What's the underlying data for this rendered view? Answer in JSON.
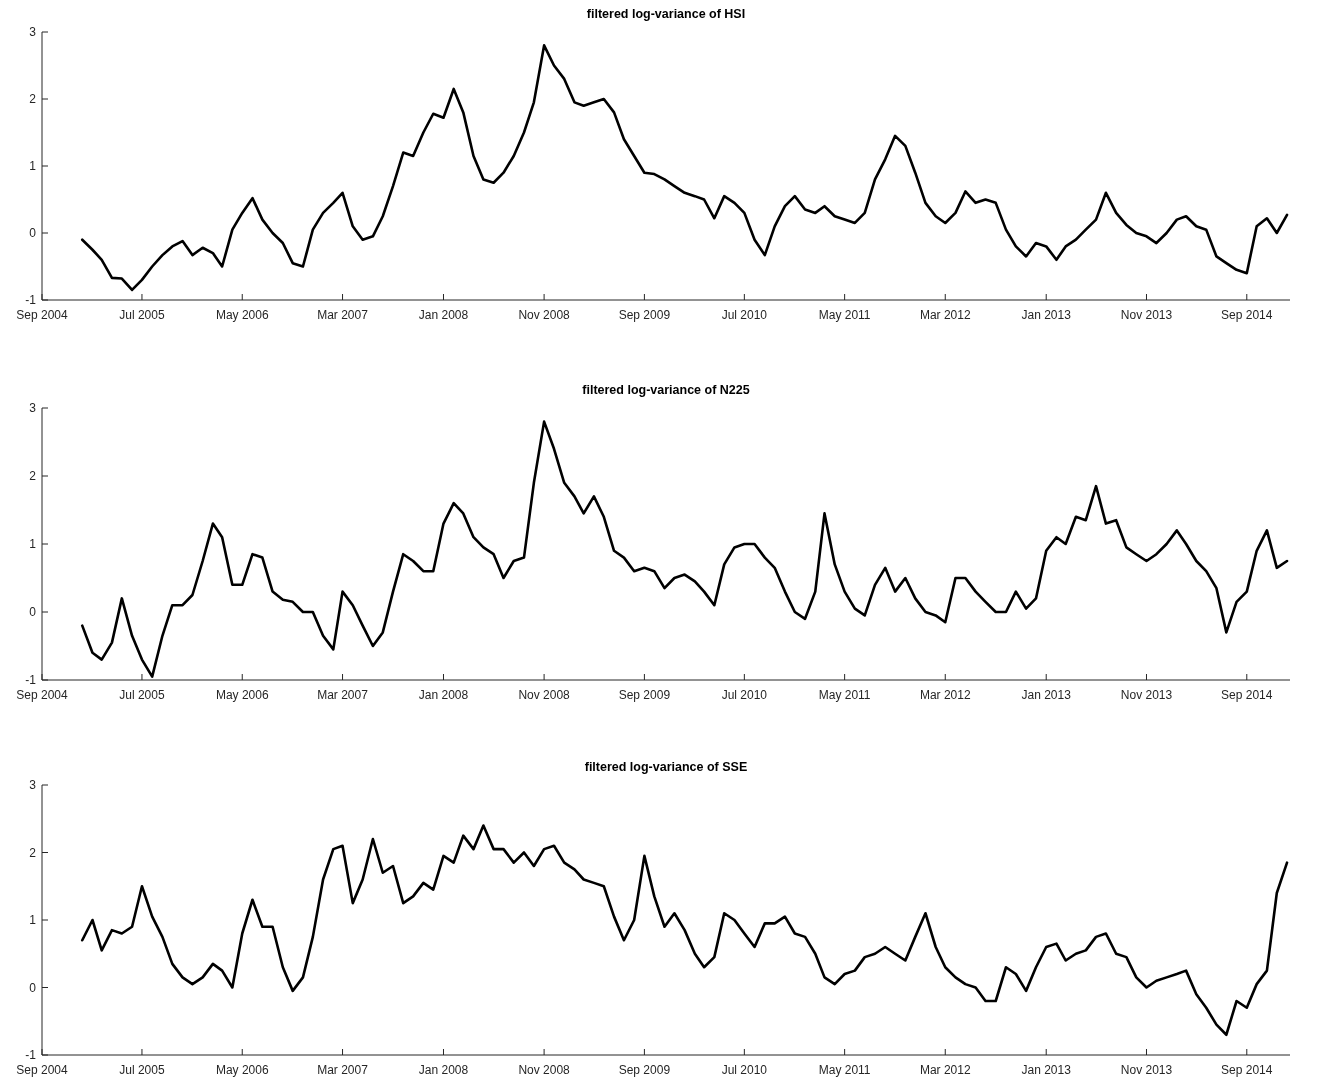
{
  "chart_data": [
    {
      "type": "line",
      "title": "filtered log-variance of HSI",
      "x": [
        "2005-01",
        "2005-02",
        "2005-03",
        "2005-04",
        "2005-05",
        "2005-06",
        "2005-07",
        "2005-08",
        "2005-09",
        "2005-10",
        "2005-11",
        "2005-12",
        "2006-01",
        "2006-02",
        "2006-03",
        "2006-04",
        "2006-05",
        "2006-06",
        "2006-07",
        "2006-08",
        "2006-09",
        "2006-10",
        "2006-11",
        "2006-12",
        "2007-01",
        "2007-02",
        "2007-03",
        "2007-04",
        "2007-05",
        "2007-06",
        "2007-07",
        "2007-08",
        "2007-09",
        "2007-10",
        "2007-11",
        "2007-12",
        "2008-01",
        "2008-02",
        "2008-03",
        "2008-04",
        "2008-05",
        "2008-06",
        "2008-07",
        "2008-08",
        "2008-09",
        "2008-10",
        "2008-11",
        "2008-12",
        "2009-01",
        "2009-02",
        "2009-03",
        "2009-04",
        "2009-05",
        "2009-06",
        "2009-07",
        "2009-08",
        "2009-09",
        "2009-10",
        "2009-11",
        "2009-12",
        "2010-01",
        "2010-02",
        "2010-03",
        "2010-04",
        "2010-05",
        "2010-06",
        "2010-07",
        "2010-08",
        "2010-09",
        "2010-10",
        "2010-11",
        "2010-12",
        "2011-01",
        "2011-02",
        "2011-03",
        "2011-04",
        "2011-05",
        "2011-06",
        "2011-07",
        "2011-08",
        "2011-09",
        "2011-10",
        "2011-11",
        "2011-12",
        "2012-01",
        "2012-02",
        "2012-03",
        "2012-04",
        "2012-05",
        "2012-06",
        "2012-07",
        "2012-08",
        "2012-09",
        "2012-10",
        "2012-11",
        "2012-12",
        "2013-01",
        "2013-02",
        "2013-03",
        "2013-04",
        "2013-05",
        "2013-06",
        "2013-07",
        "2013-08",
        "2013-09",
        "2013-10",
        "2013-11",
        "2013-12",
        "2014-01",
        "2014-02",
        "2014-03",
        "2014-04",
        "2014-05",
        "2014-06",
        "2014-07",
        "2014-08",
        "2014-09",
        "2014-10",
        "2014-11",
        "2014-12",
        "2015-01"
      ],
      "series": [
        {
          "color": "#000000",
          "values": [
            -0.1,
            -0.25,
            -0.4,
            -0.67,
            -0.68,
            -0.85,
            -0.7,
            -0.5,
            -0.33,
            -0.2,
            -0.12,
            -0.33,
            -0.22,
            -0.3,
            -0.5,
            0.05,
            0.3,
            0.52,
            0.2,
            0.0,
            -0.15,
            -0.45,
            -0.5,
            0.05,
            0.3,
            0.45,
            0.6,
            0.1,
            -0.1,
            -0.05,
            0.25,
            0.7,
            1.2,
            1.15,
            1.5,
            1.78,
            1.72,
            2.15,
            1.8,
            1.15,
            0.8,
            0.75,
            0.9,
            1.15,
            1.5,
            1.95,
            2.8,
            2.5,
            2.3,
            1.95,
            1.9,
            1.95,
            2.0,
            1.8,
            1.4,
            1.15,
            0.9,
            0.88,
            0.8,
            0.7,
            0.6,
            0.55,
            0.5,
            0.22,
            0.55,
            0.45,
            0.3,
            -0.1,
            -0.33,
            0.1,
            0.4,
            0.55,
            0.35,
            0.3,
            0.4,
            0.25,
            0.2,
            0.15,
            0.3,
            0.8,
            1.1,
            1.45,
            1.3,
            0.9,
            0.45,
            0.25,
            0.15,
            0.3,
            0.62,
            0.45,
            0.5,
            0.45,
            0.05,
            -0.2,
            -0.35,
            -0.15,
            -0.2,
            -0.4,
            -0.2,
            -0.1,
            0.05,
            0.2,
            0.6,
            0.3,
            0.12,
            0.0,
            -0.05,
            -0.15,
            0.0,
            0.2,
            0.25,
            0.1,
            0.05,
            -0.35,
            -0.45,
            -0.55,
            -0.6,
            0.1,
            0.22,
            0.0,
            0.27
          ]
        }
      ],
      "xlim": [
        "2004-09-01",
        "2015-01-10"
      ],
      "ylim": [
        -1,
        3
      ],
      "yticks": [
        -1,
        0,
        1,
        2,
        3
      ],
      "xticks": [
        {
          "value": "2004-09",
          "label": "Sep 2004"
        },
        {
          "value": "2005-07",
          "label": "Jul 2005"
        },
        {
          "value": "2006-05",
          "label": "May 2006"
        },
        {
          "value": "2007-03",
          "label": "Mar 2007"
        },
        {
          "value": "2008-01",
          "label": "Jan 2008"
        },
        {
          "value": "2008-11",
          "label": "Nov 2008"
        },
        {
          "value": "2009-09",
          "label": "Sep 2009"
        },
        {
          "value": "2010-07",
          "label": "Jul 2010"
        },
        {
          "value": "2011-05",
          "label": "May 2011"
        },
        {
          "value": "2012-03",
          "label": "Mar 2012"
        },
        {
          "value": "2013-01",
          "label": "Jan 2013"
        },
        {
          "value": "2013-11",
          "label": "Nov 2013"
        },
        {
          "value": "2014-09",
          "label": "Sep 2014"
        }
      ],
      "grid": false,
      "line_style": "solid"
    },
    {
      "type": "line",
      "title": "filtered log-variance of N225",
      "x": [
        "2005-01",
        "2005-02",
        "2005-03",
        "2005-04",
        "2005-05",
        "2005-06",
        "2005-07",
        "2005-08",
        "2005-09",
        "2005-10",
        "2005-11",
        "2005-12",
        "2006-01",
        "2006-02",
        "2006-03",
        "2006-04",
        "2006-05",
        "2006-06",
        "2006-07",
        "2006-08",
        "2006-09",
        "2006-10",
        "2006-11",
        "2006-12",
        "2007-01",
        "2007-02",
        "2007-03",
        "2007-04",
        "2007-05",
        "2007-06",
        "2007-07",
        "2007-08",
        "2007-09",
        "2007-10",
        "2007-11",
        "2007-12",
        "2008-01",
        "2008-02",
        "2008-03",
        "2008-04",
        "2008-05",
        "2008-06",
        "2008-07",
        "2008-08",
        "2008-09",
        "2008-10",
        "2008-11",
        "2008-12",
        "2009-01",
        "2009-02",
        "2009-03",
        "2009-04",
        "2009-05",
        "2009-06",
        "2009-07",
        "2009-08",
        "2009-09",
        "2009-10",
        "2009-11",
        "2009-12",
        "2010-01",
        "2010-02",
        "2010-03",
        "2010-04",
        "2010-05",
        "2010-06",
        "2010-07",
        "2010-08",
        "2010-09",
        "2010-10",
        "2010-11",
        "2010-12",
        "2011-01",
        "2011-02",
        "2011-03",
        "2011-04",
        "2011-05",
        "2011-06",
        "2011-07",
        "2011-08",
        "2011-09",
        "2011-10",
        "2011-11",
        "2011-12",
        "2012-01",
        "2012-02",
        "2012-03",
        "2012-04",
        "2012-05",
        "2012-06",
        "2012-07",
        "2012-08",
        "2012-09",
        "2012-10",
        "2012-11",
        "2012-12",
        "2013-01",
        "2013-02",
        "2013-03",
        "2013-04",
        "2013-05",
        "2013-06",
        "2013-07",
        "2013-08",
        "2013-09",
        "2013-10",
        "2013-11",
        "2013-12",
        "2014-01",
        "2014-02",
        "2014-03",
        "2014-04",
        "2014-05",
        "2014-06",
        "2014-07",
        "2014-08",
        "2014-09",
        "2014-10",
        "2014-11",
        "2014-12",
        "2015-01"
      ],
      "series": [
        {
          "color": "#000000",
          "values": [
            -0.2,
            -0.6,
            -0.7,
            -0.45,
            0.2,
            -0.35,
            -0.7,
            -0.95,
            -0.35,
            0.1,
            0.1,
            0.25,
            0.75,
            1.3,
            1.1,
            0.4,
            0.4,
            0.85,
            0.8,
            0.3,
            0.18,
            0.15,
            0.0,
            0.0,
            -0.35,
            -0.55,
            0.3,
            0.1,
            -0.2,
            -0.5,
            -0.3,
            0.3,
            0.85,
            0.75,
            0.6,
            0.6,
            1.3,
            1.6,
            1.45,
            1.1,
            0.95,
            0.85,
            0.5,
            0.75,
            0.8,
            1.9,
            2.8,
            2.4,
            1.9,
            1.7,
            1.45,
            1.7,
            1.4,
            0.9,
            0.8,
            0.6,
            0.65,
            0.6,
            0.35,
            0.5,
            0.55,
            0.45,
            0.3,
            0.1,
            0.7,
            0.95,
            1.0,
            1.0,
            0.8,
            0.65,
            0.3,
            0.0,
            -0.1,
            0.3,
            1.45,
            0.7,
            0.3,
            0.05,
            -0.05,
            0.4,
            0.65,
            0.3,
            0.5,
            0.2,
            0.0,
            -0.05,
            -0.15,
            0.5,
            0.5,
            0.3,
            0.15,
            0.0,
            0.0,
            0.3,
            0.05,
            0.2,
            0.9,
            1.1,
            1.0,
            1.4,
            1.35,
            1.85,
            1.3,
            1.35,
            0.95,
            0.85,
            0.75,
            0.85,
            1.0,
            1.2,
            1.0,
            0.75,
            0.6,
            0.35,
            -0.3,
            0.15,
            0.3,
            0.9,
            1.2,
            0.65,
            0.75
          ]
        }
      ],
      "xlim": [
        "2004-09-01",
        "2015-01-10"
      ],
      "ylim": [
        -1,
        3
      ],
      "yticks": [
        -1,
        0,
        1,
        2,
        3
      ],
      "xticks": [
        {
          "value": "2004-09",
          "label": "Sep 2004"
        },
        {
          "value": "2005-07",
          "label": "Jul 2005"
        },
        {
          "value": "2006-05",
          "label": "May 2006"
        },
        {
          "value": "2007-03",
          "label": "Mar 2007"
        },
        {
          "value": "2008-01",
          "label": "Jan 2008"
        },
        {
          "value": "2008-11",
          "label": "Nov 2008"
        },
        {
          "value": "2009-09",
          "label": "Sep 2009"
        },
        {
          "value": "2010-07",
          "label": "Jul 2010"
        },
        {
          "value": "2011-05",
          "label": "May 2011"
        },
        {
          "value": "2012-03",
          "label": "Mar 2012"
        },
        {
          "value": "2013-01",
          "label": "Jan 2013"
        },
        {
          "value": "2013-11",
          "label": "Nov 2013"
        },
        {
          "value": "2014-09",
          "label": "Sep 2014"
        }
      ],
      "grid": false,
      "line_style": "solid"
    },
    {
      "type": "line",
      "title": "filtered log-variance of SSE",
      "x": [
        "2005-01",
        "2005-02",
        "2005-03",
        "2005-04",
        "2005-05",
        "2005-06",
        "2005-07",
        "2005-08",
        "2005-09",
        "2005-10",
        "2005-11",
        "2005-12",
        "2006-01",
        "2006-02",
        "2006-03",
        "2006-04",
        "2006-05",
        "2006-06",
        "2006-07",
        "2006-08",
        "2006-09",
        "2006-10",
        "2006-11",
        "2006-12",
        "2007-01",
        "2007-02",
        "2007-03",
        "2007-04",
        "2007-05",
        "2007-06",
        "2007-07",
        "2007-08",
        "2007-09",
        "2007-10",
        "2007-11",
        "2007-12",
        "2008-01",
        "2008-02",
        "2008-03",
        "2008-04",
        "2008-05",
        "2008-06",
        "2008-07",
        "2008-08",
        "2008-09",
        "2008-10",
        "2008-11",
        "2008-12",
        "2009-01",
        "2009-02",
        "2009-03",
        "2009-04",
        "2009-05",
        "2009-06",
        "2009-07",
        "2009-08",
        "2009-09",
        "2009-10",
        "2009-11",
        "2009-12",
        "2010-01",
        "2010-02",
        "2010-03",
        "2010-04",
        "2010-05",
        "2010-06",
        "2010-07",
        "2010-08",
        "2010-09",
        "2010-10",
        "2010-11",
        "2010-12",
        "2011-01",
        "2011-02",
        "2011-03",
        "2011-04",
        "2011-05",
        "2011-06",
        "2011-07",
        "2011-08",
        "2011-09",
        "2011-10",
        "2011-11",
        "2011-12",
        "2012-01",
        "2012-02",
        "2012-03",
        "2012-04",
        "2012-05",
        "2012-06",
        "2012-07",
        "2012-08",
        "2012-09",
        "2012-10",
        "2012-11",
        "2012-12",
        "2013-01",
        "2013-02",
        "2013-03",
        "2013-04",
        "2013-05",
        "2013-06",
        "2013-07",
        "2013-08",
        "2013-09",
        "2013-10",
        "2013-11",
        "2013-12",
        "2014-01",
        "2014-02",
        "2014-03",
        "2014-04",
        "2014-05",
        "2014-06",
        "2014-07",
        "2014-08",
        "2014-09",
        "2014-10",
        "2014-11",
        "2014-12",
        "2015-01"
      ],
      "series": [
        {
          "color": "#000000",
          "values": [
            0.7,
            1.0,
            0.55,
            0.85,
            0.8,
            0.9,
            1.5,
            1.05,
            0.75,
            0.35,
            0.15,
            0.05,
            0.15,
            0.35,
            0.25,
            0.0,
            0.8,
            1.3,
            0.9,
            0.9,
            0.3,
            -0.05,
            0.15,
            0.75,
            1.6,
            2.05,
            2.1,
            1.25,
            1.6,
            2.2,
            1.7,
            1.8,
            1.25,
            1.35,
            1.55,
            1.45,
            1.95,
            1.85,
            2.25,
            2.05,
            2.4,
            2.05,
            2.05,
            1.85,
            2.0,
            1.8,
            2.05,
            2.1,
            1.85,
            1.75,
            1.6,
            1.55,
            1.5,
            1.05,
            0.7,
            1.0,
            1.95,
            1.35,
            0.9,
            1.1,
            0.85,
            0.5,
            0.3,
            0.45,
            1.1,
            1.0,
            0.8,
            0.6,
            0.95,
            0.95,
            1.05,
            0.8,
            0.75,
            0.5,
            0.15,
            0.05,
            0.2,
            0.25,
            0.45,
            0.5,
            0.6,
            0.5,
            0.4,
            0.75,
            1.1,
            0.6,
            0.3,
            0.15,
            0.05,
            0.0,
            -0.2,
            -0.2,
            0.3,
            0.2,
            -0.05,
            0.3,
            0.6,
            0.65,
            0.4,
            0.5,
            0.55,
            0.75,
            0.8,
            0.5,
            0.45,
            0.15,
            0.0,
            0.1,
            0.15,
            0.2,
            0.25,
            -0.1,
            -0.3,
            -0.55,
            -0.7,
            -0.2,
            -0.3,
            0.05,
            0.25,
            1.4,
            1.85
          ]
        }
      ],
      "xlim": [
        "2004-09-01",
        "2015-01-10"
      ],
      "ylim": [
        -1,
        3
      ],
      "yticks": [
        -1,
        0,
        1,
        2,
        3
      ],
      "xticks": [
        {
          "value": "2004-09",
          "label": "Sep 2004"
        },
        {
          "value": "2005-07",
          "label": "Jul 2005"
        },
        {
          "value": "2006-05",
          "label": "May 2006"
        },
        {
          "value": "2007-03",
          "label": "Mar 2007"
        },
        {
          "value": "2008-01",
          "label": "Jan 2008"
        },
        {
          "value": "2008-11",
          "label": "Nov 2008"
        },
        {
          "value": "2009-09",
          "label": "Sep 2009"
        },
        {
          "value": "2010-07",
          "label": "Jul 2010"
        },
        {
          "value": "2011-05",
          "label": "May 2011"
        },
        {
          "value": "2012-03",
          "label": "Mar 2012"
        },
        {
          "value": "2013-01",
          "label": "Jan 2013"
        },
        {
          "value": "2013-11",
          "label": "Nov 2013"
        },
        {
          "value": "2014-09",
          "label": "Sep 2014"
        }
      ],
      "grid": false,
      "line_style": "solid"
    }
  ]
}
